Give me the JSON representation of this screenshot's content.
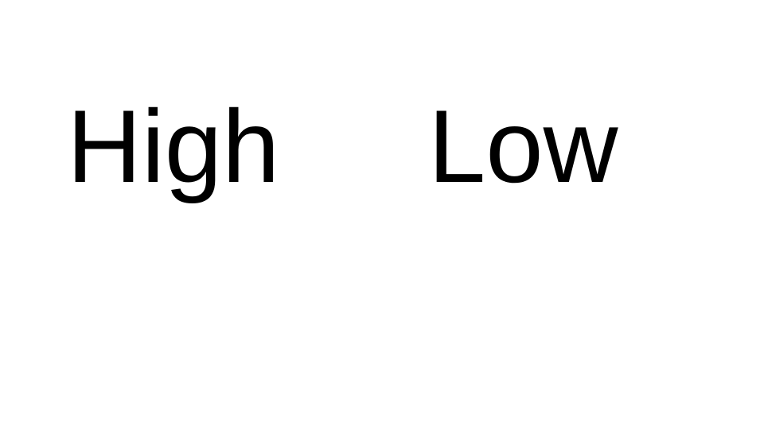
{
  "slide": {
    "left_label": "High",
    "right_label": "Low"
  },
  "colors": {
    "background": "#ffffff",
    "text": "#000000"
  }
}
